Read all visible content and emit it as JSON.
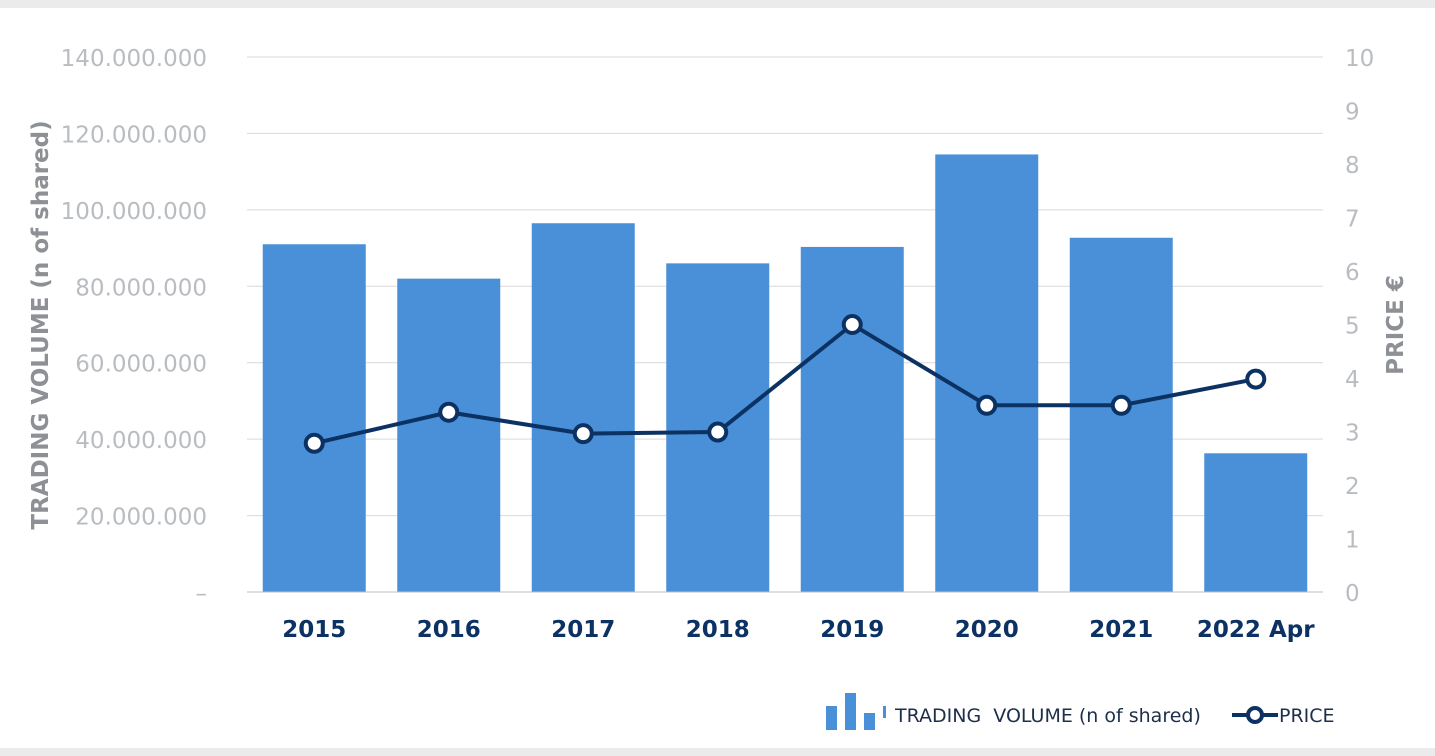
{
  "chart_data": {
    "type": "bar",
    "categories": [
      "2015",
      "2016",
      "2017",
      "2018",
      "2019",
      "2020",
      "2021",
      "2022 Apr"
    ],
    "series": [
      {
        "name": "TRADING  VOLUME (n of shared)",
        "type": "bar",
        "axis": "left",
        "color": "#4a90d9",
        "values": [
          91000000,
          82000000,
          96500000,
          86000000,
          90300000,
          114500000,
          92700000,
          36300000
        ]
      },
      {
        "name": "PRICE",
        "type": "line",
        "axis": "right",
        "color": "#0c3263",
        "values": [
          2.78,
          3.36,
          2.96,
          2.99,
          5.0,
          3.49,
          3.49,
          3.98
        ]
      }
    ],
    "ylabel": "TRADING  VOLUME (n of shared)",
    "ylabel_right": "PRICE €",
    "ylim": [
      0,
      140000000
    ],
    "ylim_right": [
      0,
      10
    ],
    "yticks_left": [
      "–",
      "20.000.000",
      "40.000.000",
      "60.000.000",
      "80.000.000",
      "100.000.000",
      "120.000.000",
      "140.000.000"
    ],
    "yticks_right": [
      "0",
      "1",
      "2",
      "3",
      "4",
      "5",
      "6",
      "7",
      "8",
      "9",
      "10"
    ],
    "grid": true,
    "legend": "bottom-right"
  }
}
